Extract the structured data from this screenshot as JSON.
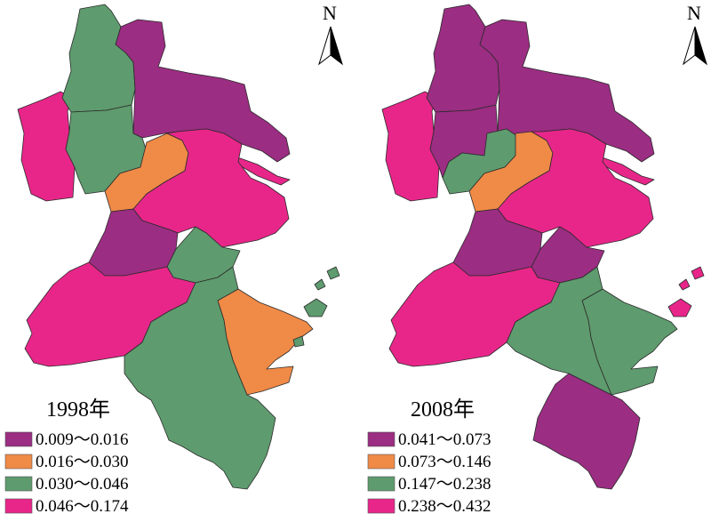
{
  "colors": {
    "purple": "#9b2d82",
    "orange": "#f08a47",
    "green": "#5e9b6e",
    "magenta": "#e8268a"
  },
  "north_label": "N",
  "maps": [
    {
      "year": "1998年",
      "legend": [
        {
          "label": "0.009～0.016",
          "color": "#9b2d82"
        },
        {
          "label": "0.016～0.030",
          "color": "#f08a47"
        },
        {
          "label": "0.030～0.046",
          "color": "#5e9b6e"
        },
        {
          "label": "0.046～0.174",
          "color": "#e8268a"
        }
      ]
    },
    {
      "year": "2008年",
      "legend": [
        {
          "label": "0.041～0.073",
          "color": "#9b2d82"
        },
        {
          "label": "0.073～0.146",
          "color": "#f08a47"
        },
        {
          "label": "0.147～0.238",
          "color": "#5e9b6e"
        },
        {
          "label": "0.238～0.432",
          "color": "#e8268a"
        }
      ]
    }
  ]
}
